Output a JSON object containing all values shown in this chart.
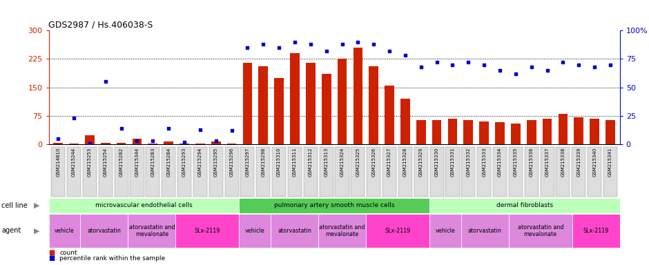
{
  "title": "GDS2987 / Hs.406038-S",
  "samples": [
    "GSM214810",
    "GSM215244",
    "GSM215253",
    "GSM215254",
    "GSM215282",
    "GSM215344",
    "GSM215283",
    "GSM215284",
    "GSM215293",
    "GSM215294",
    "GSM215295",
    "GSM215296",
    "GSM215297",
    "GSM215298",
    "GSM215310",
    "GSM215311",
    "GSM215312",
    "GSM215313",
    "GSM215324",
    "GSM215325",
    "GSM215326",
    "GSM215327",
    "GSM215328",
    "GSM215329",
    "GSM215330",
    "GSM215331",
    "GSM215332",
    "GSM215333",
    "GSM215334",
    "GSM215335",
    "GSM215336",
    "GSM215337",
    "GSM215338",
    "GSM215339",
    "GSM215340",
    "GSM215341"
  ],
  "counts": [
    5,
    3,
    25,
    5,
    5,
    15,
    3,
    8,
    3,
    3,
    8,
    3,
    215,
    205,
    175,
    240,
    215,
    185,
    225,
    255,
    205,
    155,
    120,
    65,
    65,
    68,
    65,
    60,
    58,
    55,
    65,
    68,
    80,
    72,
    68,
    65
  ],
  "percentiles": [
    5,
    23,
    1,
    55,
    14,
    3,
    3,
    14,
    2,
    13,
    3,
    12,
    85,
    88,
    85,
    90,
    88,
    82,
    88,
    90,
    88,
    82,
    78,
    68,
    72,
    70,
    72,
    70,
    65,
    62,
    68,
    65,
    72,
    70,
    68,
    70
  ],
  "cell_lines": [
    {
      "label": "microvascular endothelial cells",
      "start": 0,
      "end": 12,
      "color": "#aaffaa"
    },
    {
      "label": "pulmonary artery smooth muscle cells",
      "start": 12,
      "end": 24,
      "color": "#66dd66"
    },
    {
      "label": "dermal fibroblasts",
      "start": 24,
      "end": 36,
      "color": "#aaffaa"
    }
  ],
  "agents": [
    {
      "label": "vehicle",
      "start": 0,
      "end": 2,
      "color": "#ee88ee"
    },
    {
      "label": "atorvastatin",
      "start": 2,
      "end": 5,
      "color": "#ee88ee"
    },
    {
      "label": "atorvastatin and\nmevalonate",
      "start": 5,
      "end": 8,
      "color": "#ee88ee"
    },
    {
      "label": "SLx-2119",
      "start": 8,
      "end": 12,
      "color": "#ff44bb"
    },
    {
      "label": "vehicle",
      "start": 12,
      "end": 14,
      "color": "#ee88ee"
    },
    {
      "label": "atorvastatin",
      "start": 14,
      "end": 17,
      "color": "#ee88ee"
    },
    {
      "label": "atorvastatin and\nmevalonate",
      "start": 17,
      "end": 20,
      "color": "#ee88ee"
    },
    {
      "label": "SLx-2119",
      "start": 20,
      "end": 24,
      "color": "#ff44bb"
    },
    {
      "label": "vehicle",
      "start": 24,
      "end": 26,
      "color": "#ee88ee"
    },
    {
      "label": "atorvastatin",
      "start": 26,
      "end": 29,
      "color": "#ee88ee"
    },
    {
      "label": "atorvastatin and\nmevalonate",
      "start": 29,
      "end": 33,
      "color": "#ee88ee"
    },
    {
      "label": "SLx-2119",
      "start": 33,
      "end": 36,
      "color": "#ff44bb"
    }
  ],
  "ylim_left": [
    0,
    300
  ],
  "ylim_right": [
    0,
    100
  ],
  "yticks_left": [
    0,
    75,
    150,
    225,
    300
  ],
  "yticks_right": [
    0,
    25,
    50,
    75,
    100
  ],
  "bar_color": "#CC2200",
  "dot_color": "#0000CC",
  "bg_color": "#FFFFFF",
  "tick_bg": "#dddddd"
}
